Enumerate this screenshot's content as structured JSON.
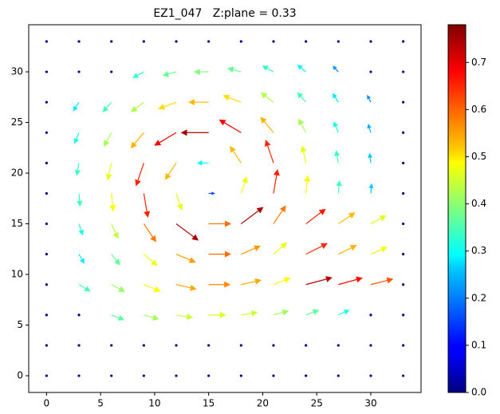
{
  "chart_data": {
    "type": "quiver",
    "title": "EZ1_047   Z:plane = 0.33",
    "colormap": "jet",
    "x": [
      0,
      3,
      6,
      9,
      12,
      15,
      18,
      21,
      24,
      27,
      30,
      33
    ],
    "y": [
      0,
      3,
      6,
      9,
      12,
      15,
      18,
      21,
      24,
      27,
      30,
      33
    ],
    "u": [
      [
        0,
        0,
        0,
        0,
        0,
        0,
        0,
        0,
        0,
        0,
        0,
        0
      ],
      [
        0,
        0,
        0,
        0,
        0,
        0,
        0,
        0,
        0,
        0,
        0,
        0
      ],
      [
        0,
        0,
        0.34,
        0.4,
        0.44,
        0.46,
        0.44,
        0.4,
        0.34,
        0.29,
        0,
        0
      ],
      [
        0,
        0.3,
        0.36,
        0.45,
        0.54,
        0.58,
        0.54,
        0.45,
        0.71,
        0.65,
        0.6,
        0
      ],
      [
        0,
        0.14,
        0.23,
        0.36,
        0.52,
        0.6,
        0.52,
        0.36,
        0.58,
        0.49,
        0.44,
        0
      ],
      [
        0,
        0.1,
        0.18,
        0.33,
        0.6,
        0.6,
        0.6,
        0.33,
        0.53,
        0.45,
        0.41,
        0
      ],
      [
        0,
        0.03,
        0.05,
        0.11,
        0.15,
        0.15,
        0.15,
        0.11,
        0.05,
        0.03,
        0.02,
        0
      ],
      [
        0,
        -0.06,
        -0.1,
        -0.21,
        -0.3,
        -0.3,
        -0.3,
        -0.21,
        -0.1,
        -0.06,
        -0.03,
        0
      ],
      [
        0,
        -0.12,
        -0.2,
        -0.35,
        -0.59,
        -0.75,
        -0.59,
        -0.35,
        -0.2,
        -0.12,
        -0.07,
        0
      ],
      [
        0,
        -0.15,
        -0.23,
        -0.34,
        -0.48,
        -0.54,
        -0.48,
        -0.34,
        -0.23,
        -0.15,
        -0.09,
        0
      ],
      [
        0,
        0,
        0,
        -0.29,
        -0.36,
        -0.39,
        -0.36,
        -0.29,
        -0.22,
        -0.14,
        0,
        0
      ],
      [
        0,
        0,
        0,
        0,
        0,
        0,
        0,
        0,
        0,
        0,
        0,
        0
      ]
    ],
    "v": [
      [
        0,
        0,
        0,
        0,
        0,
        0,
        0,
        0,
        0,
        0,
        0,
        0
      ],
      [
        0,
        0,
        0,
        0,
        0,
        0,
        0,
        0,
        0,
        0,
        0,
        0
      ],
      [
        0,
        0,
        -0.13,
        -0.11,
        -0.07,
        0,
        0.07,
        0.11,
        0.13,
        0.13,
        0,
        0
      ],
      [
        0,
        -0.18,
        -0.19,
        -0.18,
        -0.12,
        0,
        0.12,
        0.18,
        0.19,
        0.18,
        0.15,
        0
      ],
      [
        0,
        -0.24,
        -0.29,
        -0.31,
        -0.22,
        0,
        0.22,
        0.31,
        0.29,
        0.24,
        0.19,
        0
      ],
      [
        0,
        -0.3,
        -0.4,
        -0.49,
        -0.45,
        0,
        0.45,
        0.49,
        0.4,
        0.3,
        0.22,
        0
      ],
      [
        0,
        -0.34,
        -0.48,
        -0.65,
        -0.45,
        0,
        0.45,
        0.65,
        0.48,
        0.34,
        0.25,
        0
      ],
      [
        0,
        -0.33,
        -0.46,
        -0.62,
        -0.45,
        0,
        0.45,
        0.62,
        0.46,
        0.33,
        0.25,
        0
      ],
      [
        0,
        -0.29,
        -0.37,
        -0.42,
        -0.35,
        0,
        0.35,
        0.42,
        0.37,
        0.29,
        0.22,
        0
      ],
      [
        0,
        -0.23,
        -0.26,
        -0.26,
        -0.18,
        0,
        0.18,
        0.26,
        0.26,
        0.23,
        0.18,
        0
      ],
      [
        0,
        0,
        0,
        -0.16,
        -0.1,
        0,
        0.1,
        0.16,
        0.18,
        0.15,
        0,
        0
      ],
      [
        0,
        0,
        0,
        0,
        0,
        0,
        0,
        0,
        0,
        0,
        0,
        0
      ]
    ],
    "xlim": [
      -1.65,
      34.65
    ],
    "ylim": [
      -1.65,
      34.65
    ],
    "xticks": [
      0,
      5,
      10,
      15,
      20,
      25,
      30
    ],
    "yticks": [
      0,
      5,
      10,
      15,
      20,
      25,
      30
    ],
    "colorbar": {
      "lim": [
        0,
        0.78
      ],
      "ticks": [
        {
          "value": 0,
          "label": "0.0"
        },
        {
          "value": 0.1,
          "label": "0.1"
        },
        {
          "value": 0.2,
          "label": "0.2"
        },
        {
          "value": 0.3,
          "label": "0.3"
        },
        {
          "value": 0.4,
          "label": "0.4"
        },
        {
          "value": 0.5,
          "label": "0.5"
        },
        {
          "value": 0.6,
          "label": "0.6"
        },
        {
          "value": 0.7,
          "label": "0.7"
        }
      ]
    }
  }
}
